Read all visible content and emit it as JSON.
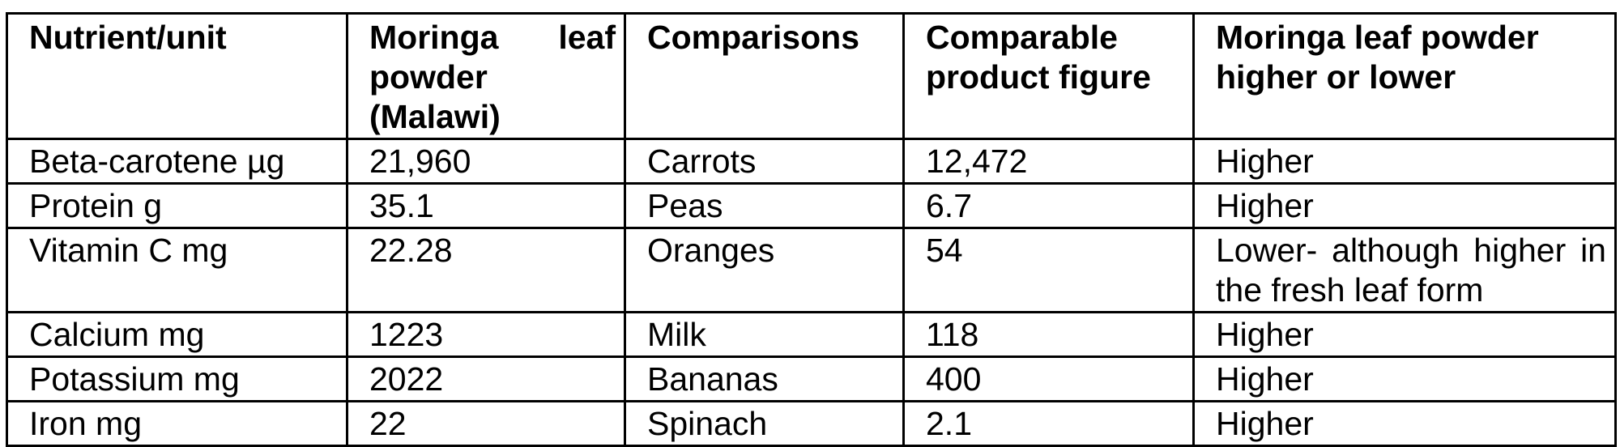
{
  "table": {
    "headers": [
      "Nutrient/unit",
      "Moringa leaf powder (Malawi)",
      "Comparisons",
      "Comparable product figure",
      "Moringa leaf powder higher or lower"
    ],
    "rows": [
      [
        "Beta-carotene µg",
        "21,960",
        "Carrots",
        "12,472",
        "Higher"
      ],
      [
        "Protein g",
        "35.1",
        "Peas",
        "6.7",
        "Higher"
      ],
      [
        "Vitamin C mg",
        "22.28",
        "Oranges",
        "54",
        "Lower- although higher in the fresh leaf form"
      ],
      [
        "Calcium mg",
        "1223",
        "Milk",
        "118",
        "Higher"
      ],
      [
        "Potassium mg",
        "2022",
        "Bananas",
        "400",
        "Higher"
      ],
      [
        "Iron mg",
        "22",
        "Spinach",
        "2.1",
        "Higher"
      ]
    ]
  }
}
